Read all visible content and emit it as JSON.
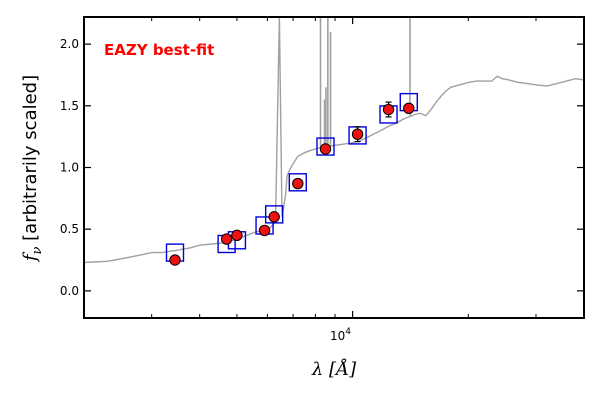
{
  "chart_data": {
    "type": "scatter",
    "title": "",
    "annotation": "EAZY best-fit",
    "annotation_color": "#ff0000",
    "xlabel": "λ [Å]",
    "ylabel": "f_ν [arbitrarily scaled]",
    "ylabel_parts": {
      "symbol": "f",
      "subscript": "ν",
      "text": " [arbitrarily scaled]"
    },
    "xlabel_parts": {
      "symbol": "λ",
      "text": " [Å]"
    },
    "xscale": "log",
    "xlim": [
      2000,
      40000
    ],
    "ylim": [
      -0.22,
      2.22
    ],
    "yticks": [
      0.0,
      0.5,
      1.0,
      1.5,
      2.0
    ],
    "ytick_labels": [
      "0.0",
      "0.5",
      "1.0",
      "1.5",
      "2.0"
    ],
    "xtick_label": {
      "value": 10000,
      "base": "10",
      "exp": "4"
    },
    "x_major_ticks": [
      10000
    ],
    "x_minor_ticks": [
      3000,
      4000,
      5000,
      6000,
      7000,
      8000,
      9000,
      20000,
      30000
    ],
    "grid": false,
    "colors": {
      "template": "#a0a0a0",
      "observed_fill": "#ee1111",
      "observed_edge": "#000000",
      "model_box": "#0000dd"
    },
    "series": [
      {
        "kind": "model_photometry",
        "x": [
          3450,
          4700,
          5000,
          5900,
          6250,
          7200,
          8500,
          10300,
          12400,
          14000
        ],
        "y": [
          0.31,
          0.38,
          0.41,
          0.53,
          0.62,
          0.88,
          1.17,
          1.26,
          1.43,
          1.53
        ]
      },
      {
        "kind": "observed_photometry",
        "x": [
          3450,
          4700,
          5000,
          5900,
          6250,
          7200,
          8500,
          10300,
          12400,
          14000
        ],
        "y": [
          0.25,
          0.42,
          0.45,
          0.49,
          0.6,
          0.87,
          1.15,
          1.27,
          1.47,
          1.48
        ],
        "yerr": [
          0.02,
          0.02,
          0.02,
          0.02,
          0.02,
          0.02,
          0.02,
          0.06,
          0.06,
          0.02
        ]
      },
      {
        "kind": "template_spectrum",
        "x": [
          2000,
          2300,
          2600,
          2800,
          3000,
          3200,
          3500,
          3800,
          4000,
          4300,
          4600,
          4900,
          5200,
          5500,
          5800,
          6100,
          6300,
          6450,
          6550,
          6600,
          6700,
          6750,
          6850,
          7000,
          7200,
          7500,
          7800,
          8200,
          8600,
          9000,
          9500,
          10000,
          10500,
          11000,
          11500,
          12000,
          12500,
          13000,
          13500,
          14000,
          14500,
          15000,
          15500,
          16000,
          16500,
          17000,
          17500,
          18000,
          19000,
          20000,
          21000,
          22000,
          23000,
          23800,
          24500,
          25500,
          27000,
          28500,
          30000,
          32000,
          34000,
          36000,
          38000,
          40000
        ],
        "y": [
          0.23,
          0.24,
          0.27,
          0.29,
          0.31,
          0.31,
          0.33,
          0.35,
          0.37,
          0.38,
          0.39,
          0.41,
          0.44,
          0.47,
          0.49,
          0.51,
          0.56,
          2.22,
          0.6,
          0.66,
          0.79,
          0.93,
          0.98,
          1.03,
          1.09,
          1.12,
          1.14,
          1.16,
          1.17,
          1.18,
          1.19,
          1.2,
          1.22,
          1.25,
          1.28,
          1.31,
          1.34,
          1.36,
          1.39,
          1.41,
          1.43,
          1.44,
          1.42,
          1.47,
          1.53,
          1.58,
          1.62,
          1.65,
          1.67,
          1.69,
          1.7,
          1.7,
          1.7,
          1.74,
          1.72,
          1.71,
          1.69,
          1.68,
          1.67,
          1.66,
          1.68,
          1.7,
          1.72,
          1.71
        ]
      },
      {
        "kind": "template_emission_lines",
        "lines": [
          {
            "x": 8250,
            "peak": 2.22
          },
          {
            "x": 8450,
            "peak": 1.55
          },
          {
            "x": 8520,
            "peak": 1.65
          },
          {
            "x": 8620,
            "peak": 2.22
          },
          {
            "x": 8760,
            "peak": 2.1
          },
          {
            "x": 14100,
            "peak": 2.22
          }
        ]
      }
    ]
  }
}
